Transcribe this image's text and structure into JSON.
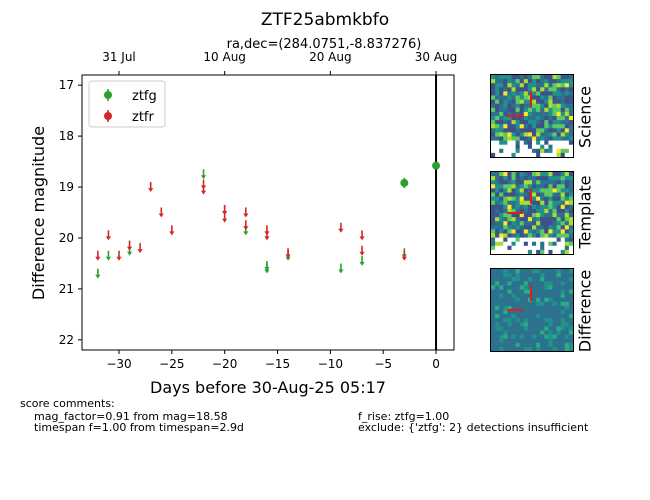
{
  "chart_data": {
    "type": "scatter",
    "title": "ZTF25abmkbfo",
    "subtitle": "ra,dec=(284.0751,-8.837276)",
    "xlabel": "Days before 30-Aug-25 05:17",
    "ylabel": "Difference magnitude",
    "xlim": [
      -33.5,
      1.7
    ],
    "ylim": [
      22.2,
      16.8
    ],
    "y_inverted": true,
    "x_ticks": [
      -30,
      -25,
      -20,
      -15,
      -10,
      -5,
      0
    ],
    "x_tick_labels": [
      "−30",
      "−25",
      "−20",
      "−15",
      "−10",
      "−5",
      "0"
    ],
    "y_ticks": [
      17,
      18,
      19,
      20,
      21,
      22
    ],
    "top_axis_ticks": [
      {
        "x": -30,
        "label": "31 Jul"
      },
      {
        "x": -20,
        "label": "10 Aug"
      },
      {
        "x": -10,
        "label": "20 Aug"
      },
      {
        "x": 0,
        "label": "30 Aug"
      }
    ],
    "vertical_line_x": 0,
    "grid": false,
    "legend_position": "top-left",
    "series": [
      {
        "name": "ztfg",
        "color": "#2ca02c",
        "upper_limits": [
          [
            -32,
            20.7
          ],
          [
            -31,
            20.35
          ],
          [
            -29,
            20.25
          ],
          [
            -22,
            18.75
          ],
          [
            -20,
            19.45
          ],
          [
            -18,
            19.85
          ],
          [
            -16,
            20.55
          ],
          [
            -16,
            20.6
          ],
          [
            -14,
            20.35
          ],
          [
            -9,
            20.6
          ],
          [
            -7,
            20.45
          ],
          [
            -3,
            20.3
          ]
        ],
        "detections": [
          [
            -3,
            18.92,
            0.1
          ],
          [
            0,
            18.58,
            0.05
          ]
        ]
      },
      {
        "name": "ztfr",
        "color": "#d62728",
        "upper_limits": [
          [
            -32,
            20.35
          ],
          [
            -31,
            19.95
          ],
          [
            -30,
            20.35
          ],
          [
            -29,
            20.15
          ],
          [
            -28,
            20.2
          ],
          [
            -27,
            19.0
          ],
          [
            -26,
            19.5
          ],
          [
            -25,
            19.85
          ],
          [
            -22,
            18.95
          ],
          [
            -22,
            19.05
          ],
          [
            -20,
            19.45
          ],
          [
            -20,
            19.6
          ],
          [
            -18,
            19.5
          ],
          [
            -18,
            19.75
          ],
          [
            -16,
            19.85
          ],
          [
            -16,
            19.95
          ],
          [
            -14,
            20.3
          ],
          [
            -9,
            19.8
          ],
          [
            -7,
            19.95
          ],
          [
            -7,
            20.25
          ],
          [
            -3,
            20.35
          ]
        ],
        "detections": []
      }
    ]
  },
  "stamps": [
    {
      "label": "Science"
    },
    {
      "label": "Template"
    },
    {
      "label": "Difference"
    }
  ],
  "comments": {
    "header": "score comments:",
    "left": [
      "mag_factor=0.91 from mag=18.58",
      "timespan f=1.00 from timespan=2.9d"
    ],
    "right": [
      "f_rise: ztfg=1.00",
      "exclude: {'ztfg': 2} detections insufficient"
    ]
  }
}
